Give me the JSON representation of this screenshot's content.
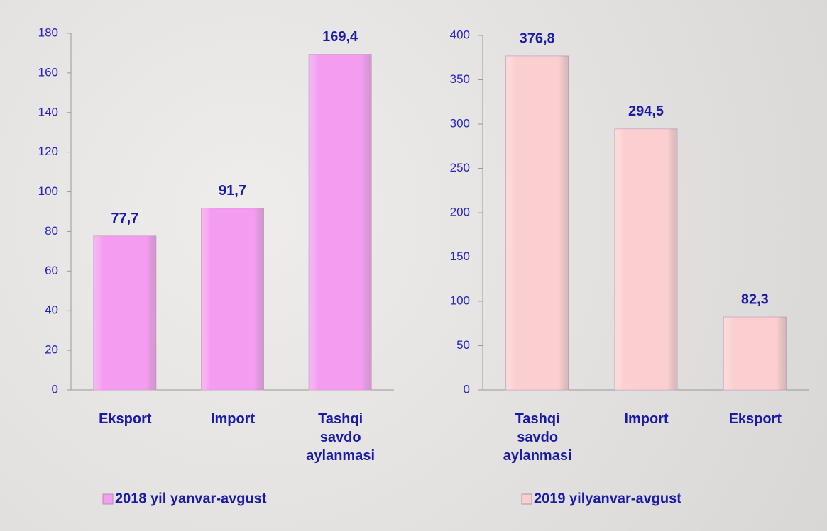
{
  "chart_data": [
    {
      "type": "bar",
      "categories": [
        "Eksport",
        "Import",
        "Tashqi savdo aylanmasi"
      ],
      "series": [
        {
          "name": "2018 yil yanvar-avgust",
          "color": "#f39cf0",
          "values": [
            77.7,
            91.7,
            169.4
          ],
          "value_labels": [
            "77,7",
            "91,7",
            "169,4"
          ]
        }
      ],
      "ylim": [
        0,
        180
      ],
      "yticks": [
        0,
        20,
        40,
        60,
        80,
        100,
        120,
        140,
        160,
        180
      ],
      "grid": false,
      "legend": "bottom"
    },
    {
      "type": "bar",
      "categories": [
        "Tashqi savdo aylanmasi",
        "Import",
        "Eksport"
      ],
      "series": [
        {
          "name": "2019 yilyanvar-avgust",
          "color": "#fbcfcf",
          "values": [
            376.8,
            294.5,
            82.3
          ],
          "value_labels": [
            "376,8",
            "294,5",
            "82,3"
          ]
        }
      ],
      "ylim": [
        0,
        400
      ],
      "yticks": [
        0,
        50,
        100,
        150,
        200,
        250,
        300,
        350,
        400
      ],
      "grid": false,
      "legend": "bottom"
    }
  ]
}
